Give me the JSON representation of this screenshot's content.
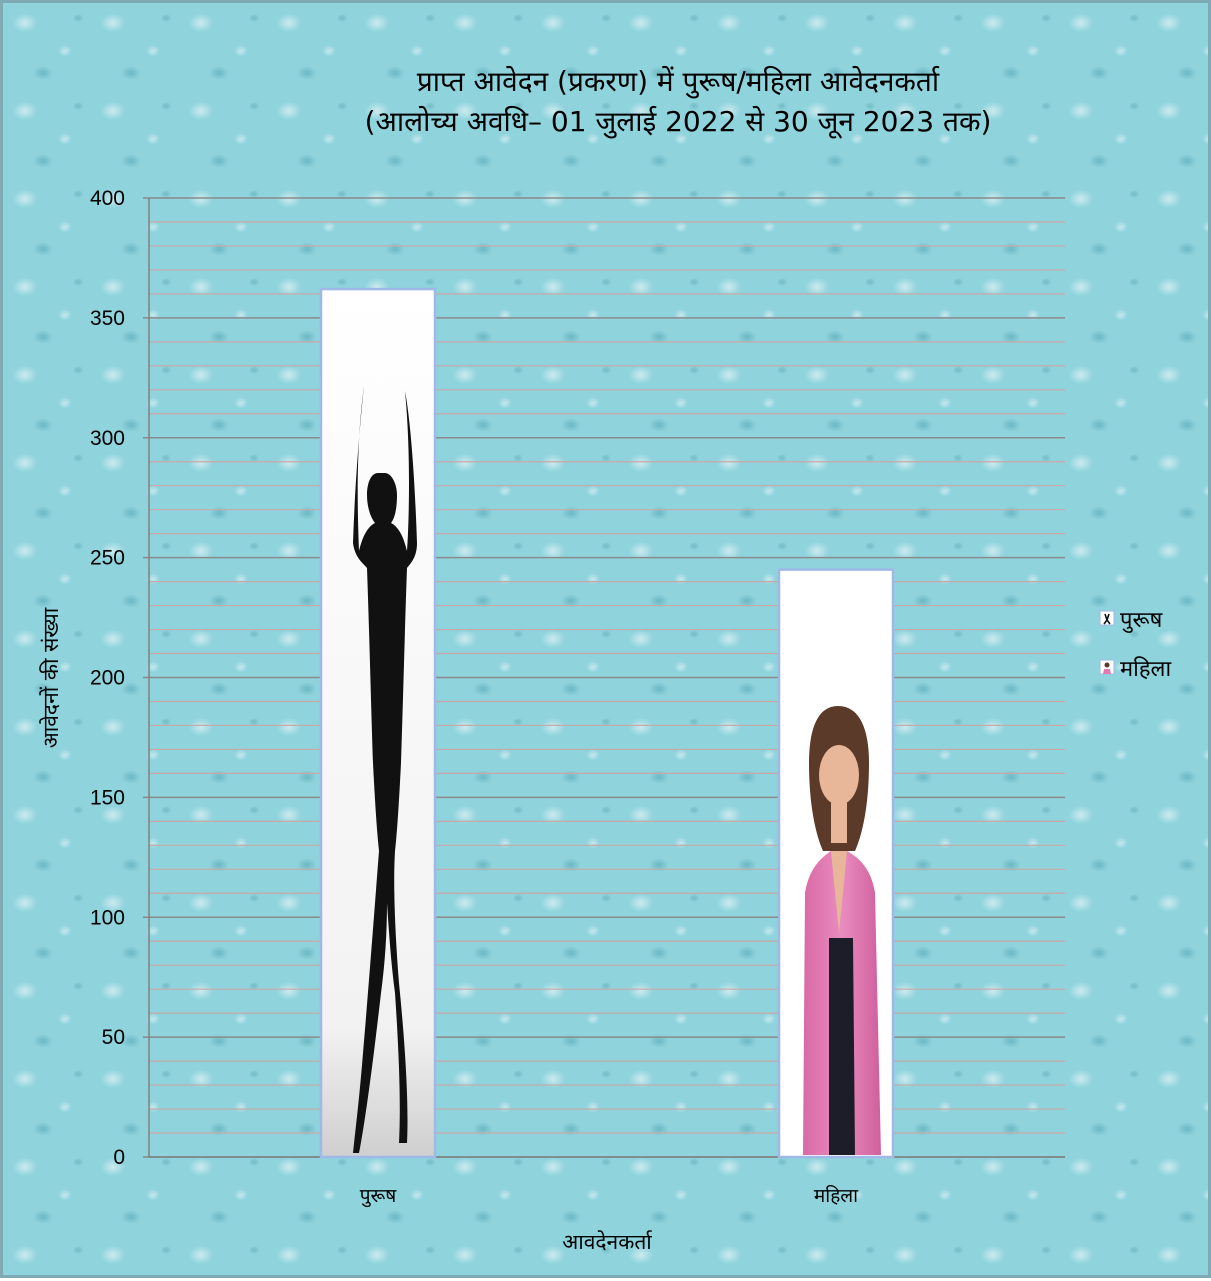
{
  "chart_data": {
    "type": "bar",
    "title": "प्राप्त आवेदन (प्रकरण) में पुरूष/महिला आवेदनकर्ता",
    "subtitle": "(आलोच्य अवधि– 01 जुलाई 2022 से 30 जून 2023 तक)",
    "xlabel": "आवदेनकर्ता",
    "ylabel": "आवेदनों की संख्या",
    "categories": [
      "पुरूष",
      "महिला"
    ],
    "values": [
      362,
      245
    ],
    "ylim": [
      0,
      400
    ],
    "yticks": [
      0,
      50,
      100,
      150,
      200,
      250,
      300,
      350,
      400
    ],
    "grid": true,
    "legend_position": "right",
    "legend": [
      {
        "name": "पुरूष",
        "icon": "man-silhouette-icon"
      },
      {
        "name": "महिला",
        "icon": "woman-photo-icon"
      }
    ],
    "colors": {
      "major_grid": "#8a8a8a",
      "minor_grid": "#c9a7a7",
      "bar_border": "#9fb8e6",
      "axis": "#808080"
    }
  }
}
